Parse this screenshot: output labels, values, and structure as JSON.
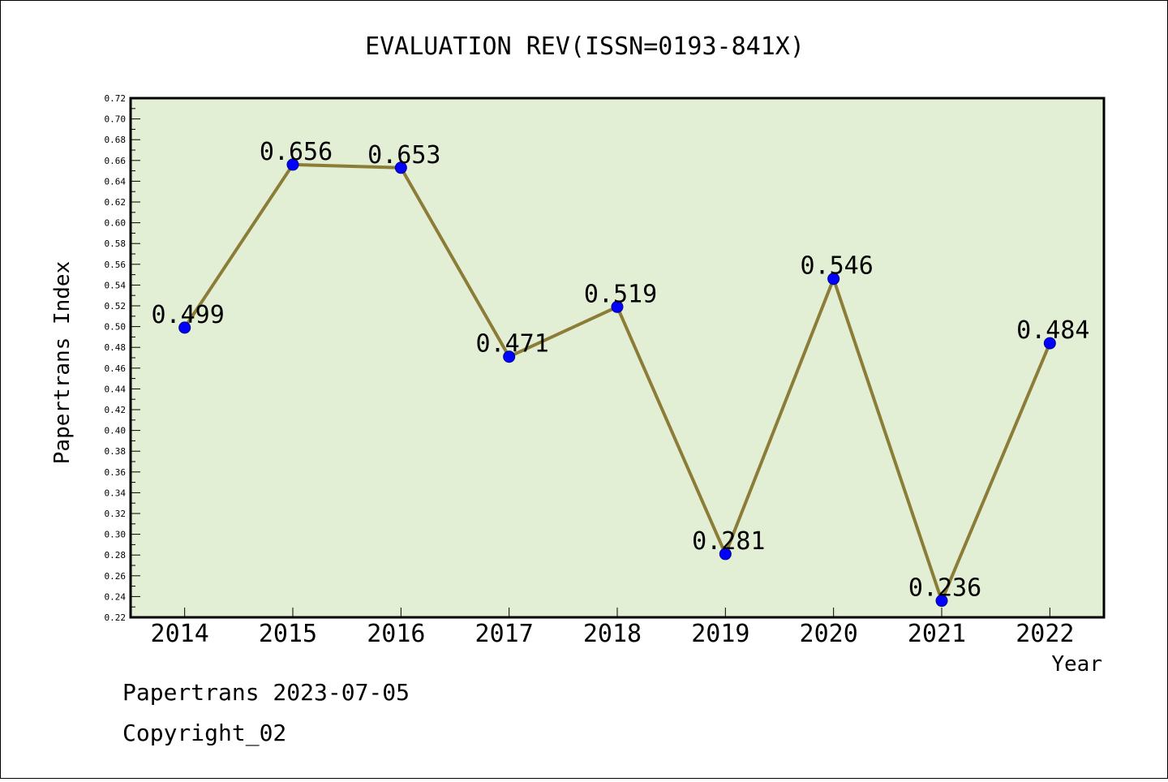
{
  "chart_data": {
    "type": "line",
    "title": "EVALUATION REV(ISSN=0193-841X)",
    "xlabel": "Year",
    "ylabel": "Papertrans Index",
    "categories": [
      "2014",
      "2015",
      "2016",
      "2017",
      "2018",
      "2019",
      "2020",
      "2021",
      "2022"
    ],
    "series": [
      {
        "values": [
          0.499,
          0.656,
          0.653,
          0.471,
          0.519,
          0.281,
          0.546,
          0.236,
          0.484
        ],
        "labels": [
          "0.499",
          "0.656",
          "0.653",
          "0.471",
          "0.519",
          "0.281",
          "0.546",
          "0.236",
          "0.484"
        ]
      }
    ],
    "ylim": [
      0.22,
      0.72
    ],
    "yticks": [
      "0.22",
      "0.24",
      "0.26",
      "0.28",
      "0.30",
      "0.32",
      "0.34",
      "0.36",
      "0.38",
      "0.40",
      "0.42",
      "0.44",
      "0.46",
      "0.48",
      "0.50",
      "0.52",
      "0.54",
      "0.56",
      "0.58",
      "0.60",
      "0.62",
      "0.64",
      "0.66",
      "0.68",
      "0.70",
      "0.72"
    ],
    "grid": false,
    "colors": {
      "plot_background": "#e2efd4",
      "line": "#8b7d38",
      "marker": "#0000ff"
    }
  },
  "footer": {
    "line1": "Papertrans 2023-07-05",
    "line2": "Copyright_02"
  }
}
